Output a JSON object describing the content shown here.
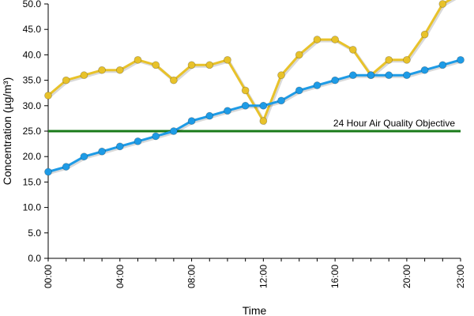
{
  "chart_data": {
    "type": "line",
    "title": "",
    "xlabel": "Time",
    "ylabel": "Concentration (µg/m³)",
    "x": [
      "00:00",
      "01:00",
      "02:00",
      "03:00",
      "04:00",
      "05:00",
      "06:00",
      "07:00",
      "08:00",
      "09:00",
      "10:00",
      "11:00",
      "12:00",
      "13:00",
      "14:00",
      "15:00",
      "16:00",
      "17:00",
      "18:00",
      "19:00",
      "20:00",
      "21:00",
      "22:00",
      "23:00"
    ],
    "x_tick_labels": [
      "00:00",
      "04:00",
      "08:00",
      "12:00",
      "16:00",
      "20:00",
      "23:00"
    ],
    "ylim": [
      0,
      50
    ],
    "y_tick_labels": [
      "0.0",
      "5.0",
      "10.0",
      "15.0",
      "20.0",
      "25.0",
      "30.0",
      "35.0",
      "40.0",
      "45.0",
      "50.0"
    ],
    "grid": false,
    "series": [
      {
        "color": "#e8c22a",
        "values": [
          32,
          35,
          36,
          37,
          37,
          39,
          38,
          35,
          38,
          38,
          39,
          33,
          27,
          36,
          40,
          43,
          43,
          41,
          36,
          39,
          39,
          44,
          50,
          52
        ]
      },
      {
        "color": "#1e9be6",
        "values": [
          17,
          18,
          20,
          21,
          22,
          23,
          24,
          25,
          27,
          28,
          29,
          30,
          30,
          31,
          33,
          34,
          35,
          36,
          36,
          36,
          36,
          37,
          38,
          39
        ]
      }
    ],
    "reference_line": {
      "label": "24 Hour Air Quality Objective",
      "value": 25,
      "color": "#1a7a1a"
    }
  }
}
